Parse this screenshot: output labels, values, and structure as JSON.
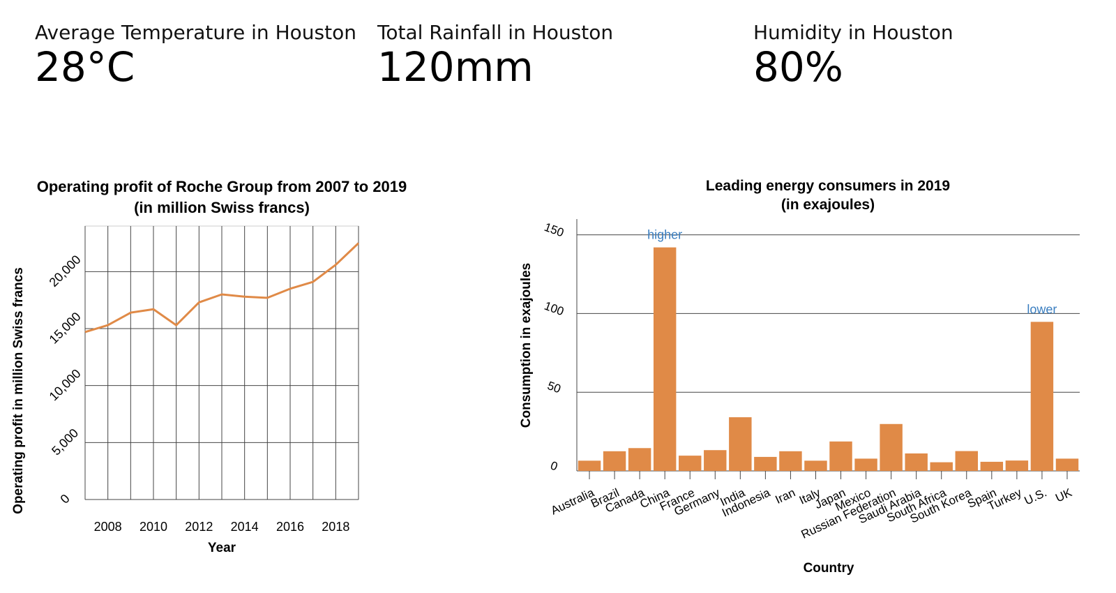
{
  "stats": [
    {
      "label": "Average Temperature in Houston",
      "value": "28°C"
    },
    {
      "label": "Total Rainfall in Houston",
      "value": "120mm"
    },
    {
      "label": "Humidity in Houston",
      "value": "80%"
    }
  ],
  "colors": {
    "series": "#E08A47",
    "grid": "#444444",
    "annotation": "#3A7EC0"
  },
  "chart_data": [
    {
      "type": "line",
      "title": "Operating profit of Roche Group from 2007 to 2019",
      "subtitle": "(in million Swiss francs)",
      "xlabel": "Year",
      "ylabel": "Operating profit in million Swiss francs",
      "xlim": [
        2007,
        2019
      ],
      "ylim": [
        0,
        24000
      ],
      "xticks": [
        2008,
        2010,
        2012,
        2014,
        2016,
        2018
      ],
      "xtick_labels": [
        "2008",
        "2010",
        "2012",
        "2014",
        "2016",
        "2018"
      ],
      "yticks": [
        0,
        5000,
        10000,
        15000,
        20000
      ],
      "ytick_labels": [
        "0",
        "5,000",
        "10,000",
        "15,000",
        "20,000"
      ],
      "grid": true,
      "x": [
        2007,
        2008,
        2009,
        2010,
        2011,
        2012,
        2013,
        2014,
        2015,
        2016,
        2017,
        2018,
        2019
      ],
      "values": [
        14700,
        15300,
        16400,
        16700,
        15300,
        17300,
        18000,
        17800,
        17700,
        18500,
        19100,
        20600,
        22500
      ]
    },
    {
      "type": "bar",
      "title": "Leading energy consumers in 2019",
      "subtitle": "(in exajoules)",
      "xlabel": "Country",
      "ylabel": "Consumption in exajoules",
      "ylim": [
        0,
        160
      ],
      "yticks": [
        0,
        50,
        100,
        150
      ],
      "ytick_labels": [
        "0",
        "50",
        "100",
        "150"
      ],
      "grid": true,
      "categories": [
        "Australia",
        "Brazil",
        "Canada",
        "China",
        "France",
        "Germany",
        "India",
        "Indonesia",
        "Iran",
        "Italy",
        "Japan",
        "Mexico",
        "Russian Federation",
        "Saudi Arabia",
        "South Africa",
        "South Korea",
        "Spain",
        "Turkey",
        "U.S.",
        "UK"
      ],
      "values": [
        6.5,
        12.5,
        14.5,
        142,
        9.7,
        13.2,
        34.1,
        8.9,
        12.5,
        6.5,
        18.7,
        7.8,
        29.8,
        11.1,
        5.5,
        12.6,
        5.8,
        6.6,
        94.7,
        7.8
      ],
      "annotations": [
        {
          "text": "higher",
          "category": "China"
        },
        {
          "text": "lower",
          "category": "U.S."
        }
      ]
    }
  ]
}
